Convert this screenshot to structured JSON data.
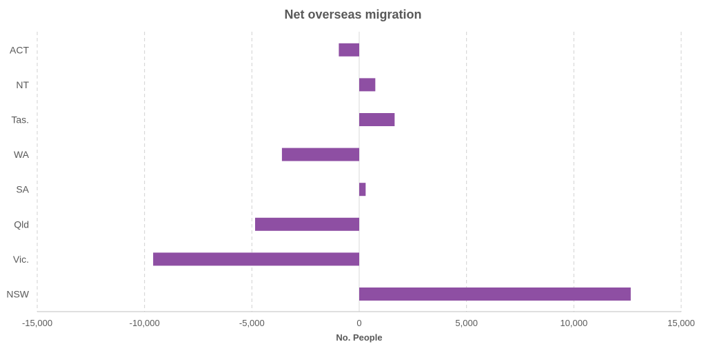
{
  "chart_data": {
    "type": "bar",
    "orientation": "horizontal",
    "title": "Net overseas migration",
    "xlabel": "No. People",
    "ylabel": "",
    "categories": [
      "ACT",
      "NT",
      "Tas.",
      "WA",
      "SA",
      "Qld",
      "Vic.",
      "NSW"
    ],
    "values": [
      -950,
      750,
      1650,
      -3600,
      300,
      -4850,
      -9600,
      12650
    ],
    "xlim": [
      -15000,
      15000
    ],
    "x_ticks": [
      -15000,
      -10000,
      -5000,
      0,
      5000,
      10000,
      15000
    ],
    "x_tick_labels": [
      "-15,000",
      "-10,000",
      "-5,000",
      "0",
      "5,000",
      "10,000",
      "15,000"
    ],
    "grid": "vertical-dashed",
    "legend": "none",
    "bar_color": "#8E4FA3"
  }
}
